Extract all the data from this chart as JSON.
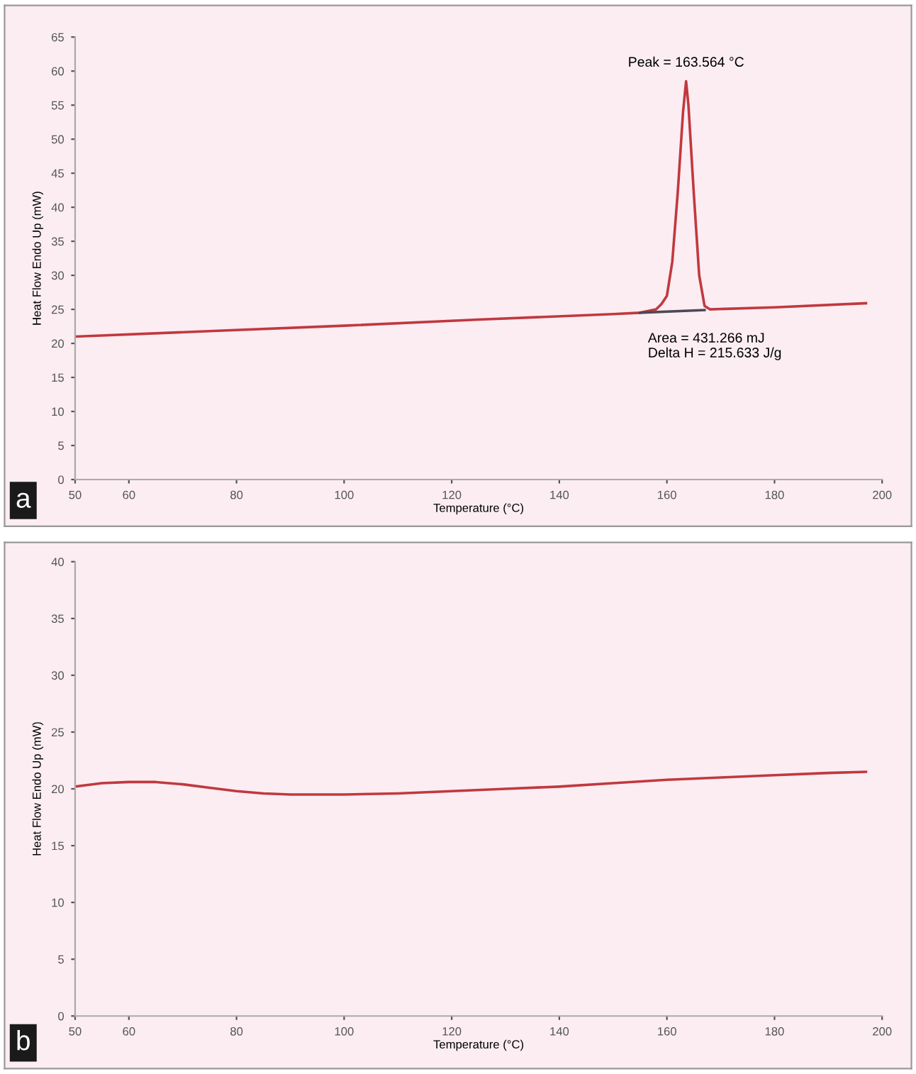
{
  "chart_data": [
    {
      "type": "line",
      "xlabel": "Temperature (°C)",
      "ylabel": "Heat Flow Endo Up (mW)",
      "xlim": [
        50,
        200
      ],
      "ylim": [
        0,
        65
      ],
      "xticks": [
        50,
        60,
        80,
        100,
        120,
        140,
        160,
        180,
        200
      ],
      "yticks": [
        0,
        5,
        10,
        15,
        20,
        25,
        30,
        35,
        40,
        45,
        50,
        55,
        60,
        65
      ],
      "grid": false,
      "legend": false,
      "series": [
        {
          "color": "#c0393f",
          "x": [
            50,
            75,
            100,
            125,
            150,
            155,
            158,
            159,
            160,
            161,
            162,
            163,
            163.564,
            164,
            165,
            166,
            167,
            168,
            180,
            197
          ],
          "values": [
            21,
            21.8,
            22.6,
            23.5,
            24.3,
            24.5,
            25,
            25.8,
            27,
            32,
            42,
            54,
            58.5,
            55,
            42,
            30,
            25.5,
            25,
            25.3,
            25.9
          ]
        },
        {
          "color": "#4a4a55",
          "x": [
            155,
            167
          ],
          "values": [
            24.5,
            24.9
          ]
        }
      ],
      "annotations": [
        {
          "text": "Peak = 163.564 °C",
          "x": 163.564,
          "y": 58.5
        },
        {
          "text": "Area = 431.266 mJ\nDelta H = 215.633 J/g",
          "x": 155,
          "y": 24.5
        },
        "a"
      ]
    },
    {
      "type": "line",
      "xlabel": "Temperature (°C)",
      "ylabel": "Heat Flow Endo Up (mW)",
      "xlim": [
        50,
        200
      ],
      "ylim": [
        0,
        40
      ],
      "xticks": [
        50,
        60,
        80,
        100,
        120,
        140,
        160,
        180,
        200
      ],
      "yticks": [
        0,
        5,
        10,
        15,
        20,
        25,
        30,
        35,
        40
      ],
      "grid": false,
      "legend": false,
      "series": [
        {
          "color": "#c0393f",
          "x": [
            50,
            55,
            60,
            65,
            70,
            75,
            80,
            85,
            90,
            100,
            110,
            120,
            130,
            140,
            150,
            160,
            170,
            180,
            190,
            197
          ],
          "values": [
            20.2,
            20.5,
            20.6,
            20.6,
            20.4,
            20.1,
            19.8,
            19.6,
            19.5,
            19.5,
            19.6,
            19.8,
            20.0,
            20.2,
            20.5,
            20.8,
            21.0,
            21.2,
            21.4,
            21.5
          ]
        }
      ],
      "annotations": [
        "b"
      ]
    }
  ]
}
